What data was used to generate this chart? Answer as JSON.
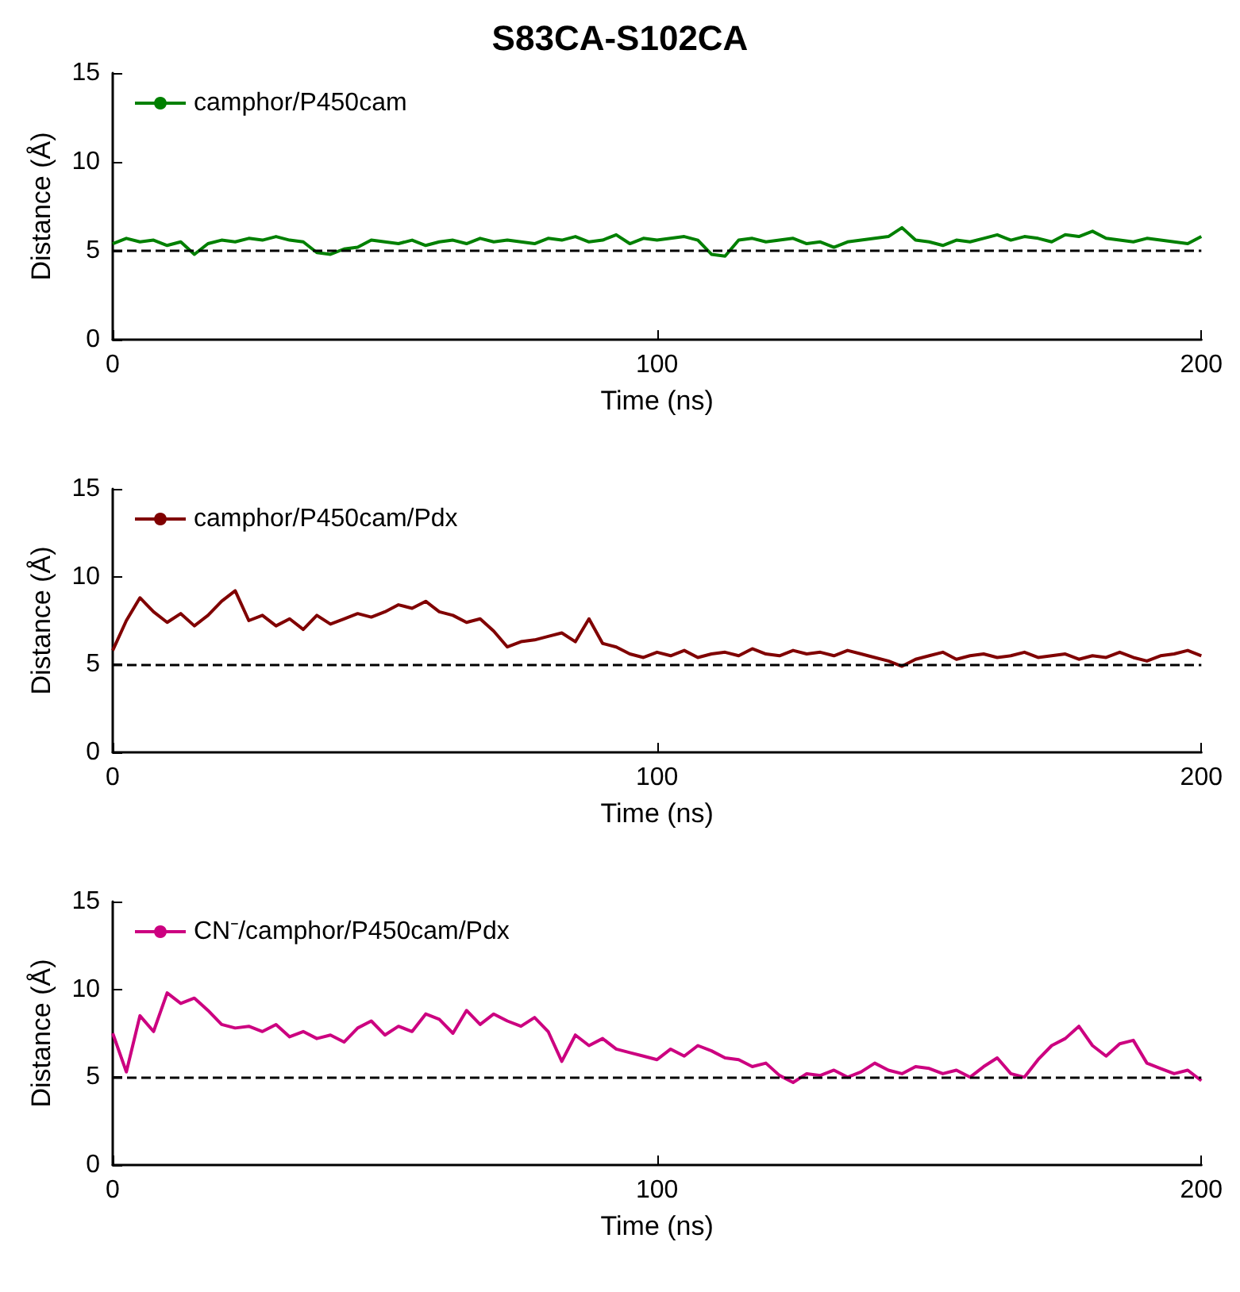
{
  "chart_data": [
    {
      "type": "line",
      "title": "S83CA-S102CA",
      "xlabel": "Time (ns)",
      "ylabel": "Distance (Å)",
      "legend": "top left",
      "grid": false,
      "xlim": [
        0,
        200
      ],
      "ylim": [
        0,
        15
      ],
      "xticks": [
        0,
        100,
        200
      ],
      "yticks": [
        0,
        5,
        10,
        15
      ],
      "ref_lines": [
        {
          "axis": "y",
          "value": 5,
          "color": "#000000",
          "line_style": "dashed"
        }
      ],
      "x": [
        0,
        2.5,
        5,
        7.5,
        10,
        12.5,
        15,
        17.5,
        20,
        22.5,
        25,
        27.5,
        30,
        32.5,
        35,
        37.5,
        40,
        42.5,
        45,
        47.5,
        50,
        52.5,
        55,
        57.5,
        60,
        62.5,
        65,
        67.5,
        70,
        72.5,
        75,
        77.5,
        80,
        82.5,
        85,
        87.5,
        90,
        92.5,
        95,
        97.5,
        100,
        102.5,
        105,
        107.5,
        110,
        112.5,
        115,
        117.5,
        120,
        122.5,
        125,
        127.5,
        130,
        132.5,
        135,
        137.5,
        140,
        142.5,
        145,
        147.5,
        150,
        152.5,
        155,
        157.5,
        160,
        162.5,
        165,
        167.5,
        170,
        172.5,
        175,
        177.5,
        180,
        182.5,
        185,
        187.5,
        190,
        192.5,
        195,
        197.5,
        200
      ],
      "series": [
        {
          "name": "camphor/P450cam",
          "color": "#008000",
          "values": [
            5.4,
            5.7,
            5.5,
            5.6,
            5.3,
            5.5,
            4.8,
            5.4,
            5.6,
            5.5,
            5.7,
            5.6,
            5.8,
            5.6,
            5.5,
            4.9,
            4.8,
            5.1,
            5.2,
            5.6,
            5.5,
            5.4,
            5.6,
            5.3,
            5.5,
            5.6,
            5.4,
            5.7,
            5.5,
            5.6,
            5.5,
            5.4,
            5.7,
            5.6,
            5.8,
            5.5,
            5.6,
            5.9,
            5.4,
            5.7,
            5.6,
            5.7,
            5.8,
            5.6,
            4.8,
            4.7,
            5.6,
            5.7,
            5.5,
            5.6,
            5.7,
            5.4,
            5.5,
            5.2,
            5.5,
            5.6,
            5.7,
            5.8,
            6.3,
            5.6,
            5.5,
            5.3,
            5.6,
            5.5,
            5.7,
            5.9,
            5.6,
            5.8,
            5.7,
            5.5,
            5.9,
            5.8,
            6.1,
            5.7,
            5.6,
            5.5,
            5.7,
            5.6,
            5.5,
            5.4,
            5.8
          ]
        }
      ]
    },
    {
      "type": "line",
      "xlabel": "Time (ns)",
      "ylabel": "Distance (Å)",
      "legend": "top left",
      "grid": false,
      "xlim": [
        0,
        200
      ],
      "ylim": [
        0,
        15
      ],
      "xticks": [
        0,
        100,
        200
      ],
      "yticks": [
        0,
        5,
        10,
        15
      ],
      "ref_lines": [
        {
          "axis": "y",
          "value": 5,
          "color": "#000000",
          "line_style": "dashed"
        }
      ],
      "x": [
        0,
        2.5,
        5,
        7.5,
        10,
        12.5,
        15,
        17.5,
        20,
        22.5,
        25,
        27.5,
        30,
        32.5,
        35,
        37.5,
        40,
        42.5,
        45,
        47.5,
        50,
        52.5,
        55,
        57.5,
        60,
        62.5,
        65,
        67.5,
        70,
        72.5,
        75,
        77.5,
        80,
        82.5,
        85,
        87.5,
        90,
        92.5,
        95,
        97.5,
        100,
        102.5,
        105,
        107.5,
        110,
        112.5,
        115,
        117.5,
        120,
        122.5,
        125,
        127.5,
        130,
        132.5,
        135,
        137.5,
        140,
        142.5,
        145,
        147.5,
        150,
        152.5,
        155,
        157.5,
        160,
        162.5,
        165,
        167.5,
        170,
        172.5,
        175,
        177.5,
        180,
        182.5,
        185,
        187.5,
        190,
        192.5,
        195,
        197.5,
        200
      ],
      "series": [
        {
          "name": "camphor/P450cam/Pdx",
          "color": "#800000",
          "values": [
            5.8,
            7.5,
            8.8,
            8.0,
            7.4,
            7.9,
            7.2,
            7.8,
            8.6,
            9.2,
            7.5,
            7.8,
            7.2,
            7.6,
            7.0,
            7.8,
            7.3,
            7.6,
            7.9,
            7.7,
            8.0,
            8.4,
            8.2,
            8.6,
            8.0,
            7.8,
            7.4,
            7.6,
            6.9,
            6.0,
            6.3,
            6.4,
            6.6,
            6.8,
            6.3,
            7.6,
            6.2,
            6.0,
            5.6,
            5.4,
            5.7,
            5.5,
            5.8,
            5.4,
            5.6,
            5.7,
            5.5,
            5.9,
            5.6,
            5.5,
            5.8,
            5.6,
            5.7,
            5.5,
            5.8,
            5.6,
            5.4,
            5.2,
            4.9,
            5.3,
            5.5,
            5.7,
            5.3,
            5.5,
            5.6,
            5.4,
            5.5,
            5.7,
            5.4,
            5.5,
            5.6,
            5.3,
            5.5,
            5.4,
            5.7,
            5.4,
            5.2,
            5.5,
            5.6,
            5.8,
            5.5
          ]
        }
      ]
    },
    {
      "type": "line",
      "xlabel": "Time (ns)",
      "ylabel": "Distance (Å)",
      "legend": "top left",
      "grid": false,
      "xlim": [
        0,
        200
      ],
      "ylim": [
        0,
        15
      ],
      "xticks": [
        0,
        100,
        200
      ],
      "yticks": [
        0,
        5,
        10,
        15
      ],
      "ref_lines": [
        {
          "axis": "y",
          "value": 5,
          "color": "#000000",
          "line_style": "dashed"
        }
      ],
      "x": [
        0,
        2.5,
        5,
        7.5,
        10,
        12.5,
        15,
        17.5,
        20,
        22.5,
        25,
        27.5,
        30,
        32.5,
        35,
        37.5,
        40,
        42.5,
        45,
        47.5,
        50,
        52.5,
        55,
        57.5,
        60,
        62.5,
        65,
        67.5,
        70,
        72.5,
        75,
        77.5,
        80,
        82.5,
        85,
        87.5,
        90,
        92.5,
        95,
        97.5,
        100,
        102.5,
        105,
        107.5,
        110,
        112.5,
        115,
        117.5,
        120,
        122.5,
        125,
        127.5,
        130,
        132.5,
        135,
        137.5,
        140,
        142.5,
        145,
        147.5,
        150,
        152.5,
        155,
        157.5,
        160,
        162.5,
        165,
        167.5,
        170,
        172.5,
        175,
        177.5,
        180,
        182.5,
        185,
        187.5,
        190,
        192.5,
        195,
        197.5,
        200
      ],
      "series": [
        {
          "name": "CN⁻/camphor/P450cam/Pdx",
          "color": "#cc0080",
          "values": [
            7.5,
            5.3,
            8.5,
            7.6,
            9.8,
            9.2,
            9.5,
            8.8,
            8.0,
            7.8,
            7.9,
            7.6,
            8.0,
            7.3,
            7.6,
            7.2,
            7.4,
            7.0,
            7.8,
            8.2,
            7.4,
            7.9,
            7.6,
            8.6,
            8.3,
            7.5,
            8.8,
            8.0,
            8.6,
            8.2,
            7.9,
            8.4,
            7.6,
            5.9,
            7.4,
            6.8,
            7.2,
            6.6,
            6.4,
            6.2,
            6.0,
            6.6,
            6.2,
            6.8,
            6.5,
            6.1,
            6.0,
            5.6,
            5.8,
            5.1,
            4.7,
            5.2,
            5.1,
            5.4,
            5.0,
            5.3,
            5.8,
            5.4,
            5.2,
            5.6,
            5.5,
            5.2,
            5.4,
            5.0,
            5.6,
            6.1,
            5.2,
            5.0,
            6.0,
            6.8,
            7.2,
            7.9,
            6.8,
            6.2,
            6.9,
            7.1,
            5.8,
            5.5,
            5.2,
            5.4,
            4.8
          ]
        }
      ]
    }
  ]
}
